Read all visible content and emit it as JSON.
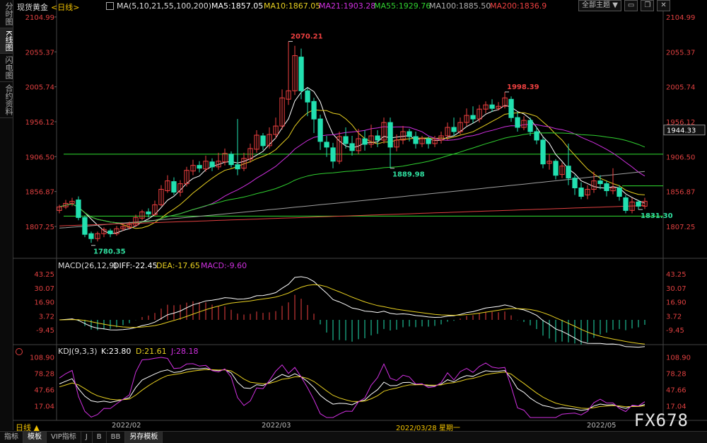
{
  "sidebar": {
    "tabs": [
      {
        "label": "分时图",
        "active": false
      },
      {
        "label": "K线图",
        "active": true
      },
      {
        "label": "闪电图",
        "active": false
      },
      {
        "label": "合约资料",
        "active": false
      }
    ]
  },
  "topbar": {
    "theme_label": "全部主题",
    "dropdown_icon": "▼"
  },
  "header": {
    "instrument": "现货黄金",
    "period_tag": "<日线>",
    "ma_params": "MA(5,10,21,55,100,200)",
    "ma5": "MA5:1857.05",
    "ma10": "MA10:1867.05",
    "ma21": "MA21:1903.28",
    "ma55": "MA55:1929.76",
    "ma100": "MA100:1885.50",
    "ma200": "MA200:1836.9"
  },
  "macd_header": {
    "params": "MACD(26,12,9)",
    "diff": "DIFF:-22.45",
    "dea": "DEA:-17.65",
    "macd": "MACD:-9.60"
  },
  "kdj_header": {
    "params": "KDJ(9,3,3)",
    "k": "K:23.80",
    "d": "D:21.61",
    "j": "J:28.18"
  },
  "footer": {
    "period_label": "日线 ▲",
    "tabs": [
      {
        "label": "指标",
        "active": false
      },
      {
        "label": "模板",
        "active": true
      },
      {
        "label": "VIP指标",
        "active": false
      },
      {
        "label": "J",
        "active": false
      },
      {
        "label": "B",
        "active": false
      },
      {
        "label": "BB",
        "active": false
      },
      {
        "label": "另存模板",
        "active": true
      }
    ],
    "watermark": "FX678"
  },
  "chart_data": {
    "type": "candlestick",
    "x_labels": [
      "2022/02",
      "2022/03",
      "2022/03/28 星期一",
      "2022/05"
    ],
    "price_axis": [
      "2104.99",
      "2055.37",
      "2005.74",
      "1956.12",
      "1906.50",
      "1856.87",
      "1807.25"
    ],
    "price_range": [
      1765,
      2115
    ],
    "current_price": "1944.33",
    "annotations": [
      {
        "label": "2070.21",
        "value": 2070.21
      },
      {
        "label": "1998.39",
        "value": 1998.39
      },
      {
        "label": "1889.98",
        "value": 1889.98
      },
      {
        "label": "1780.35",
        "value": 1780.35
      },
      {
        "label": "1831.30",
        "value": 1831.3
      }
    ],
    "horizontal_lines": [
      1910,
      1822,
      1865
    ],
    "colors": {
      "up": "#ee4040",
      "down": "#22e0b0",
      "ma5": "#ffffff",
      "ma10": "#e8d020",
      "ma21": "#d030e0",
      "ma55": "#30d030",
      "ma100": "#a0a0a0",
      "ma200": "#e04040"
    },
    "candles": [
      [
        1830,
        1835,
        1826,
        1838
      ],
      [
        1835,
        1840,
        1832,
        1845
      ],
      [
        1840,
        1843,
        1836,
        1848
      ],
      [
        1845,
        1820,
        1816,
        1850
      ],
      [
        1820,
        1796,
        1792,
        1823
      ],
      [
        1797,
        1790,
        1784,
        1800
      ],
      [
        1790,
        1797,
        1786,
        1800
      ],
      [
        1797,
        1803,
        1792,
        1806
      ],
      [
        1801,
        1797,
        1792,
        1804
      ],
      [
        1797,
        1804,
        1794,
        1808
      ],
      [
        1804,
        1807,
        1801,
        1811
      ],
      [
        1806,
        1810,
        1803,
        1814
      ],
      [
        1809,
        1820,
        1807,
        1824
      ],
      [
        1819,
        1828,
        1816,
        1831
      ],
      [
        1828,
        1825,
        1820,
        1833
      ],
      [
        1824,
        1838,
        1822,
        1844
      ],
      [
        1838,
        1860,
        1836,
        1866
      ],
      [
        1858,
        1872,
        1855,
        1880
      ],
      [
        1871,
        1856,
        1852,
        1877
      ],
      [
        1856,
        1868,
        1850,
        1873
      ],
      [
        1868,
        1887,
        1864,
        1892
      ],
      [
        1886,
        1894,
        1880,
        1902
      ],
      [
        1894,
        1890,
        1884,
        1900
      ],
      [
        1889,
        1900,
        1885,
        1908
      ],
      [
        1899,
        1892,
        1886,
        1904
      ],
      [
        1892,
        1900,
        1888,
        1912
      ],
      [
        1899,
        1911,
        1894,
        1918
      ],
      [
        1910,
        1895,
        1891,
        1914
      ],
      [
        1895,
        1889,
        1880,
        1960
      ],
      [
        1890,
        1904,
        1886,
        1912
      ],
      [
        1903,
        1918,
        1898,
        1925
      ],
      [
        1917,
        1937,
        1912,
        1944
      ],
      [
        1936,
        1922,
        1916,
        1940
      ],
      [
        1922,
        1938,
        1918,
        1948
      ],
      [
        1938,
        1950,
        1932,
        1962
      ],
      [
        1950,
        1990,
        1945,
        2002
      ],
      [
        1988,
        2000,
        1980,
        2070
      ],
      [
        2000,
        2050,
        1994,
        2064
      ],
      [
        2048,
        2000,
        1988,
        2060
      ],
      [
        2000,
        1984,
        1964,
        2004
      ],
      [
        1985,
        1960,
        1940,
        1990
      ],
      [
        1960,
        1928,
        1916,
        1966
      ],
      [
        1927,
        1920,
        1906,
        1936
      ],
      [
        1919,
        1900,
        1890,
        1926
      ],
      [
        1900,
        1935,
        1896,
        1942
      ],
      [
        1935,
        1925,
        1918,
        1948
      ],
      [
        1925,
        1915,
        1908,
        1936
      ],
      [
        1915,
        1932,
        1910,
        1946
      ],
      [
        1932,
        1924,
        1915,
        1944
      ],
      [
        1924,
        1936,
        1919,
        1952
      ],
      [
        1936,
        1930,
        1920,
        1944
      ],
      [
        1930,
        1955,
        1925,
        1962
      ],
      [
        1955,
        1920,
        1889.98,
        1962
      ],
      [
        1920,
        1930,
        1914,
        1938
      ],
      [
        1930,
        1942,
        1924,
        1950
      ],
      [
        1942,
        1935,
        1928,
        1946
      ],
      [
        1935,
        1925,
        1918,
        1942
      ],
      [
        1925,
        1932,
        1920,
        1936
      ],
      [
        1932,
        1925,
        1918,
        1935
      ],
      [
        1925,
        1930,
        1920,
        1936
      ],
      [
        1930,
        1936,
        1925,
        1942
      ],
      [
        1936,
        1948,
        1930,
        1955
      ],
      [
        1948,
        1942,
        1936,
        1962
      ],
      [
        1942,
        1955,
        1938,
        1962
      ],
      [
        1955,
        1965,
        1950,
        1975
      ],
      [
        1965,
        1960,
        1954,
        1978
      ],
      [
        1960,
        1974,
        1955,
        1980
      ],
      [
        1974,
        1980,
        1968,
        1985
      ],
      [
        1980,
        1975,
        1970,
        1988
      ],
      [
        1975,
        1978,
        1972,
        1984
      ],
      [
        1978,
        1990,
        1975,
        1998.39
      ],
      [
        1988,
        1962,
        1956,
        1992
      ],
      [
        1962,
        1948,
        1942,
        1970
      ],
      [
        1948,
        1958,
        1944,
        1964
      ],
      [
        1958,
        1942,
        1936,
        1962
      ],
      [
        1942,
        1930,
        1924,
        1948
      ],
      [
        1930,
        1896,
        1890,
        1934
      ],
      [
        1897,
        1900,
        1888,
        1910
      ],
      [
        1900,
        1880,
        1874,
        1903
      ],
      [
        1881,
        1893,
        1876,
        1898
      ],
      [
        1893,
        1876,
        1866,
        1925
      ],
      [
        1876,
        1862,
        1852,
        1880
      ],
      [
        1862,
        1850,
        1846,
        1870
      ],
      [
        1852,
        1860,
        1846,
        1866
      ],
      [
        1860,
        1872,
        1855,
        1885
      ],
      [
        1872,
        1868,
        1860,
        1880
      ],
      [
        1868,
        1858,
        1850,
        1872
      ],
      [
        1858,
        1862,
        1853,
        1890
      ],
      [
        1862,
        1850,
        1844,
        1866
      ],
      [
        1848,
        1830,
        1826,
        1852
      ],
      [
        1830,
        1842,
        1826,
        1848
      ],
      [
        1842,
        1836,
        1831.3,
        1845
      ],
      [
        1836,
        1843,
        1832,
        1848
      ]
    ],
    "macd_axis": [
      "43.25",
      "30.07",
      "16.90",
      "3.72",
      "-9.45"
    ],
    "macd_range": [
      -20,
      48
    ],
    "kdj_axis": [
      "108.90",
      "78.28",
      "47.66",
      "17.04"
    ],
    "kdj_range": [
      -5,
      115
    ]
  }
}
